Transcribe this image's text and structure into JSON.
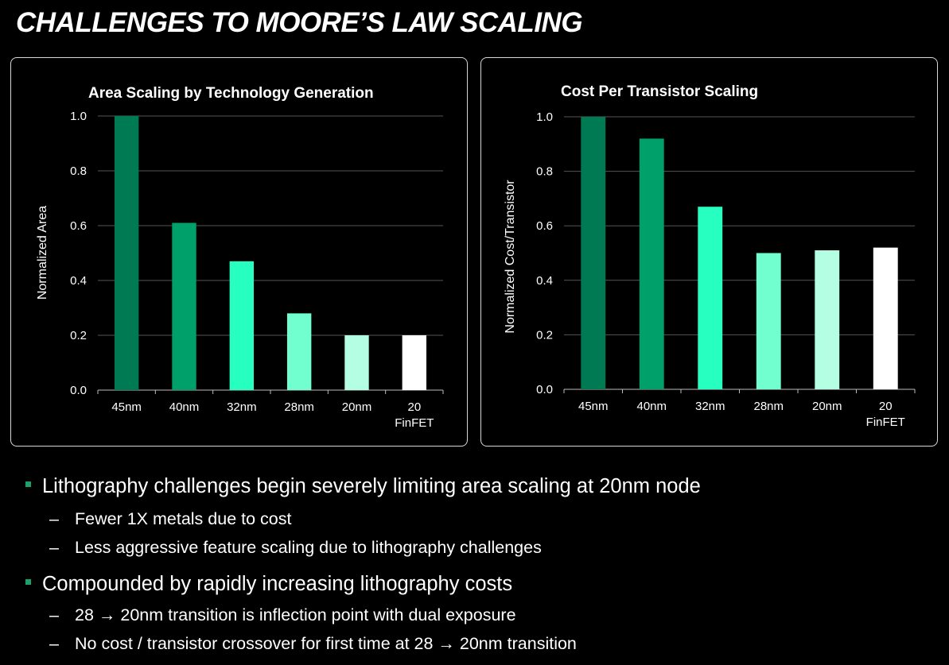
{
  "slide": {
    "title": "CHALLENGES TO MOORE’S LAW SCALING"
  },
  "chart_data": [
    {
      "type": "bar",
      "title": "Area Scaling by Technology Generation",
      "xlabel": "",
      "ylabel": "Normalized Area",
      "categories": [
        "45nm",
        "40nm",
        "32nm",
        "28nm",
        "20nm",
        "20\nFinFET"
      ],
      "values": [
        1.0,
        0.61,
        0.47,
        0.28,
        0.2,
        0.2
      ],
      "bar_colors": [
        "#007a52",
        "#00a06a",
        "#26ffc0",
        "#72ffcf",
        "#b4ffe4",
        "#ffffff"
      ],
      "yticks": [
        "0.0",
        "0.2",
        "0.4",
        "0.6",
        "0.8",
        "1.0"
      ],
      "ylim": [
        0,
        1.0
      ],
      "grid": true
    },
    {
      "type": "bar",
      "title": "Cost Per Transistor Scaling",
      "xlabel": "",
      "ylabel": "Normalized Cost/Transistor",
      "categories": [
        "45nm",
        "40nm",
        "32nm",
        "28nm",
        "20nm",
        "20\nFinFET"
      ],
      "values": [
        1.0,
        0.92,
        0.67,
        0.5,
        0.51,
        0.52
      ],
      "bar_colors": [
        "#007a52",
        "#00a06a",
        "#26ffc0",
        "#72ffcf",
        "#b4ffe4",
        "#ffffff"
      ],
      "yticks": [
        "0.0",
        "0.2",
        "0.4",
        "0.6",
        "0.8",
        "1.0"
      ],
      "ylim": [
        0,
        1.0
      ],
      "grid": true
    }
  ],
  "bullets": [
    {
      "text": "Lithography challenges begin severely limiting area scaling at 20nm node",
      "subs": [
        "Fewer 1X metals due to cost",
        "Less aggressive feature scaling due to lithography challenges"
      ]
    },
    {
      "text": "Compounded by rapidly increasing lithography costs",
      "subs": [
        "28 → 20nm transition is inflection point with dual exposure",
        "No cost / transistor crossover for first time at 28 → 20nm transition"
      ]
    }
  ],
  "dash": "–"
}
